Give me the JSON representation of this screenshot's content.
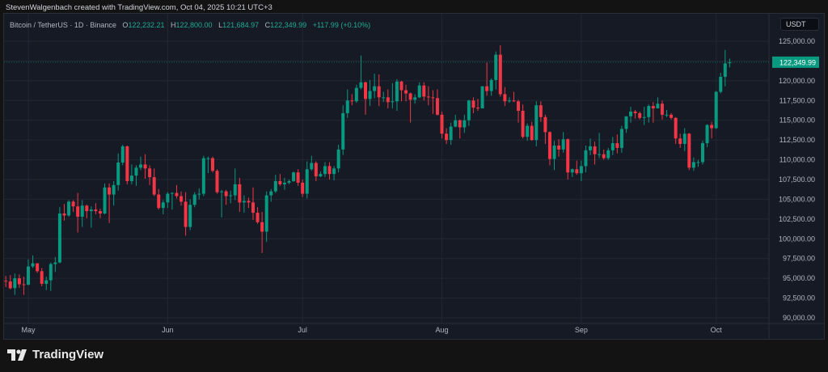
{
  "header": {
    "credit": "StevenWalgenbach created with TradingView.com, Oct 04, 2025 10:21 UTC+3"
  },
  "legend": {
    "symbol": "Bitcoin / TetherUS · 1D · Binance",
    "o_label": "O",
    "o": "122,232.21",
    "h_label": "H",
    "h": "122,800.00",
    "l_label": "L",
    "l": "121,684.97",
    "c_label": "C",
    "c": "122,349.99",
    "change": "+117.99 (+0.10%)"
  },
  "currency": "USDT",
  "footer": {
    "logo_text": "TradingView"
  },
  "colors": {
    "up": "#089981",
    "down": "#f23645",
    "last_price_bg": "#089981",
    "background": "#161a25"
  },
  "chart_data": {
    "type": "candlestick",
    "title": "Bitcoin / TetherUS · 1D · Binance",
    "ylim": [
      90000,
      125000
    ],
    "y_ticks": [
      "90,000.00",
      "92,500.00",
      "95,000.00",
      "97,500.00",
      "100,000.00",
      "102,500.00",
      "105,000.00",
      "107,500.00",
      "110,000.00",
      "112,500.00",
      "115,000.00",
      "117,500.00",
      "120,000.00",
      "122,500.00",
      "125,000.00"
    ],
    "x_ticks": [
      {
        "label": "May",
        "date": "05-01"
      },
      {
        "label": "Jun",
        "date": "06-01"
      },
      {
        "label": "Jul",
        "date": "07-01"
      },
      {
        "label": "Aug",
        "date": "08-01"
      },
      {
        "label": "Sep",
        "date": "09-01"
      },
      {
        "label": "Oct",
        "date": "10-01"
      }
    ],
    "last_price": "122,349.99",
    "grid": true,
    "candles_columns": [
      "date",
      "open",
      "high",
      "low",
      "close"
    ],
    "candles": [
      [
        "04-26",
        94700,
        95300,
        93900,
        94600
      ],
      [
        "04-27",
        94600,
        95400,
        93600,
        93750
      ],
      [
        "04-28",
        93750,
        95600,
        92900,
        95000
      ],
      [
        "04-29",
        95000,
        95500,
        93800,
        94250
      ],
      [
        "04-30",
        94250,
        95200,
        92900,
        94200
      ],
      [
        "05-01",
        94200,
        97400,
        94100,
        96500
      ],
      [
        "05-02",
        96500,
        97900,
        96300,
        96900
      ],
      [
        "05-03",
        96900,
        96900,
        95700,
        95900
      ],
      [
        "05-04",
        95900,
        96300,
        94000,
        94300
      ],
      [
        "05-05",
        94300,
        95200,
        93500,
        94750
      ],
      [
        "05-06",
        94750,
        97000,
        93400,
        96800
      ],
      [
        "05-07",
        96800,
        97700,
        95800,
        97000
      ],
      [
        "05-08",
        97000,
        104000,
        96900,
        103200
      ],
      [
        "05-09",
        103200,
        104400,
        102300,
        102950
      ],
      [
        "05-10",
        102950,
        104900,
        102800,
        104700
      ],
      [
        "05-11",
        104700,
        104900,
        103400,
        104100
      ],
      [
        "05-12",
        104100,
        105800,
        100800,
        102800
      ],
      [
        "05-13",
        102800,
        104900,
        101500,
        104200
      ],
      [
        "05-14",
        104200,
        104300,
        102600,
        103500
      ],
      [
        "05-15",
        103500,
        104100,
        101400,
        103700
      ],
      [
        "05-16",
        103700,
        104500,
        103100,
        103500
      ],
      [
        "05-17",
        103500,
        103800,
        102600,
        103200
      ],
      [
        "05-18",
        103200,
        107000,
        103100,
        106500
      ],
      [
        "05-19",
        106500,
        107000,
        102000,
        105600
      ],
      [
        "05-20",
        105600,
        107300,
        104200,
        106800
      ],
      [
        "05-21",
        106800,
        110800,
        106100,
        109650
      ],
      [
        "05-22",
        109650,
        111900,
        109300,
        111700
      ],
      [
        "05-23",
        111700,
        111800,
        106900,
        107300
      ],
      [
        "05-24",
        107300,
        109400,
        106900,
        108000
      ],
      [
        "05-25",
        108000,
        109300,
        106700,
        109000
      ],
      [
        "05-26",
        109000,
        110400,
        108700,
        109400
      ],
      [
        "05-27",
        109400,
        110700,
        107600,
        108900
      ],
      [
        "05-28",
        108900,
        109300,
        106800,
        107800
      ],
      [
        "05-29",
        107800,
        108900,
        105400,
        105600
      ],
      [
        "05-30",
        105600,
        106300,
        103700,
        103900
      ],
      [
        "05-31",
        103900,
        104900,
        103100,
        104600
      ],
      [
        "06-01",
        104600,
        105900,
        103900,
        105700
      ],
      [
        "06-02",
        105700,
        105900,
        103700,
        105800
      ],
      [
        "06-03",
        105800,
        106800,
        105100,
        105400
      ],
      [
        "06-04",
        105400,
        106000,
        104200,
        104700
      ],
      [
        "06-05",
        104700,
        105900,
        100400,
        101500
      ],
      [
        "06-06",
        101500,
        105000,
        101100,
        104300
      ],
      [
        "06-07",
        104300,
        105900,
        104000,
        105600
      ],
      [
        "06-08",
        105600,
        106400,
        105000,
        105700
      ],
      [
        "06-09",
        105700,
        110500,
        105400,
        110200
      ],
      [
        "06-10",
        110200,
        110400,
        108300,
        110200
      ],
      [
        "06-11",
        110200,
        110400,
        108400,
        108600
      ],
      [
        "06-12",
        108600,
        108800,
        105700,
        105900
      ],
      [
        "06-13",
        105900,
        106200,
        102700,
        106000
      ],
      [
        "06-14",
        106000,
        106200,
        104300,
        105400
      ],
      [
        "06-15",
        105400,
        106100,
        104500,
        105500
      ],
      [
        "06-16",
        105500,
        108900,
        104900,
        106900
      ],
      [
        "06-17",
        106900,
        107700,
        103400,
        104600
      ],
      [
        "06-18",
        104600,
        105500,
        103300,
        104800
      ],
      [
        "06-19",
        104800,
        105200,
        103900,
        104600
      ],
      [
        "06-20",
        104600,
        106500,
        102400,
        103300
      ],
      [
        "06-21",
        103300,
        104000,
        101900,
        102100
      ],
      [
        "06-22",
        102100,
        103400,
        98200,
        100900
      ],
      [
        "06-23",
        100900,
        106000,
        99600,
        105500
      ],
      [
        "06-24",
        105500,
        106300,
        104700,
        106000
      ],
      [
        "06-25",
        106000,
        108100,
        105800,
        107300
      ],
      [
        "06-26",
        107300,
        108200,
        106700,
        106900
      ],
      [
        "06-27",
        106900,
        107700,
        106200,
        107100
      ],
      [
        "06-28",
        107100,
        107500,
        106900,
        107300
      ],
      [
        "06-29",
        107300,
        108500,
        107200,
        108400
      ],
      [
        "06-30",
        108400,
        108800,
        106700,
        107100
      ],
      [
        "07-01",
        107100,
        107500,
        105300,
        105700
      ],
      [
        "07-02",
        105700,
        109800,
        105100,
        108800
      ],
      [
        "07-03",
        108800,
        110500,
        108600,
        109600
      ],
      [
        "07-04",
        109600,
        109800,
        107300,
        107900
      ],
      [
        "07-05",
        107900,
        108500,
        107800,
        108200
      ],
      [
        "07-06",
        108200,
        109700,
        107800,
        109200
      ],
      [
        "07-07",
        109200,
        109700,
        107500,
        108200
      ],
      [
        "07-08",
        108200,
        109200,
        107400,
        108900
      ],
      [
        "07-09",
        108900,
        111900,
        108400,
        111300
      ],
      [
        "07-10",
        111300,
        116900,
        110600,
        115900
      ],
      [
        "07-11",
        115900,
        118900,
        115300,
        117500
      ],
      [
        "07-12",
        117500,
        118300,
        116900,
        117400
      ],
      [
        "07-13",
        117400,
        119500,
        117200,
        119100
      ],
      [
        "07-14",
        119100,
        123200,
        118900,
        119800
      ],
      [
        "07-15",
        119800,
        119900,
        115700,
        117700
      ],
      [
        "07-16",
        117700,
        120100,
        116800,
        118700
      ],
      [
        "07-17",
        118700,
        120900,
        117800,
        119300
      ],
      [
        "07-18",
        119300,
        120800,
        116800,
        117900
      ],
      [
        "07-19",
        117900,
        118600,
        117300,
        117900
      ],
      [
        "07-20",
        117900,
        118900,
        116500,
        117300
      ],
      [
        "07-21",
        117300,
        119700,
        116500,
        117400
      ],
      [
        "07-22",
        117400,
        120200,
        116200,
        119900
      ],
      [
        "07-23",
        119900,
        120000,
        117400,
        118800
      ],
      [
        "07-24",
        118800,
        119500,
        117400,
        118400
      ],
      [
        "07-25",
        118400,
        118500,
        114700,
        117600
      ],
      [
        "07-26",
        117600,
        118300,
        117100,
        117900
      ],
      [
        "07-27",
        117900,
        119800,
        117800,
        119400
      ],
      [
        "07-28",
        119400,
        119800,
        117500,
        118000
      ],
      [
        "07-29",
        118000,
        119300,
        116900,
        117900
      ],
      [
        "07-30",
        117900,
        118800,
        115800,
        117800
      ],
      [
        "07-31",
        117800,
        118900,
        115600,
        115700
      ],
      [
        "08-01",
        115700,
        116100,
        112700,
        113300
      ],
      [
        "08-02",
        113300,
        114000,
        112000,
        112500
      ],
      [
        "08-03",
        112500,
        114700,
        111900,
        114200
      ],
      [
        "08-04",
        114200,
        115700,
        114100,
        115000
      ],
      [
        "08-05",
        115000,
        115100,
        112700,
        114100
      ],
      [
        "08-06",
        114100,
        115700,
        113400,
        115000
      ],
      [
        "08-07",
        115000,
        117600,
        114300,
        117500
      ],
      [
        "08-08",
        117500,
        117900,
        115900,
        116600
      ],
      [
        "08-09",
        116600,
        117700,
        116200,
        116500
      ],
      [
        "08-10",
        116500,
        119300,
        116500,
        119300
      ],
      [
        "08-11",
        119300,
        122300,
        118100,
        118700
      ],
      [
        "08-12",
        118700,
        120300,
        118100,
        120100
      ],
      [
        "08-13",
        120100,
        123700,
        118900,
        123300
      ],
      [
        "08-14",
        123300,
        124500,
        118000,
        118300
      ],
      [
        "08-15",
        118300,
        119200,
        116800,
        117400
      ],
      [
        "08-16",
        117400,
        117900,
        117200,
        117500
      ],
      [
        "08-17",
        117500,
        118600,
        117300,
        117400
      ],
      [
        "08-18",
        117400,
        117600,
        114700,
        116200
      ],
      [
        "08-19",
        116200,
        117000,
        112700,
        112900
      ],
      [
        "08-20",
        112900,
        114600,
        112400,
        114300
      ],
      [
        "08-21",
        114300,
        114800,
        112400,
        112500
      ],
      [
        "08-22",
        112500,
        117400,
        111700,
        116900
      ],
      [
        "08-23",
        116900,
        117400,
        114800,
        115400
      ],
      [
        "08-24",
        115400,
        115700,
        112000,
        113500
      ],
      [
        "08-25",
        113500,
        113600,
        109300,
        110100
      ],
      [
        "08-26",
        110100,
        112400,
        108700,
        111800
      ],
      [
        "08-27",
        111800,
        112600,
        110400,
        111300
      ],
      [
        "08-28",
        111300,
        113500,
        110900,
        112600
      ],
      [
        "08-29",
        112600,
        112700,
        107500,
        108400
      ],
      [
        "08-30",
        108400,
        108900,
        107800,
        108800
      ],
      [
        "08-31",
        108800,
        109900,
        108100,
        108300
      ],
      [
        "09-01",
        108300,
        109900,
        107300,
        109200
      ],
      [
        "09-02",
        109200,
        111800,
        108400,
        111200
      ],
      [
        "09-03",
        111200,
        112700,
        110600,
        111700
      ],
      [
        "09-04",
        111700,
        112300,
        109400,
        110700
      ],
      [
        "09-05",
        110700,
        113400,
        110200,
        110700
      ],
      [
        "09-06",
        110700,
        111300,
        110000,
        110200
      ],
      [
        "09-07",
        110200,
        111500,
        110000,
        111200
      ],
      [
        "09-08",
        111200,
        112900,
        110600,
        112100
      ],
      [
        "09-09",
        112100,
        113200,
        110800,
        111500
      ],
      [
        "09-10",
        111500,
        114300,
        110900,
        113900
      ],
      [
        "09-11",
        113900,
        115500,
        113400,
        115500
      ],
      [
        "09-12",
        115500,
        116700,
        114700,
        116100
      ],
      [
        "09-13",
        116100,
        116300,
        115200,
        115900
      ],
      [
        "09-14",
        115900,
        116100,
        115100,
        115300
      ],
      [
        "09-15",
        115300,
        116700,
        114400,
        115400
      ],
      [
        "09-16",
        115400,
        117000,
        114700,
        116800
      ],
      [
        "09-17",
        116800,
        117300,
        114700,
        116500
      ],
      [
        "09-18",
        116500,
        117900,
        116500,
        117100
      ],
      [
        "09-19",
        117100,
        117500,
        115100,
        115700
      ],
      [
        "09-20",
        115700,
        116300,
        115400,
        115700
      ],
      [
        "09-21",
        115700,
        115900,
        115100,
        115300
      ],
      [
        "09-22",
        115300,
        115400,
        112000,
        112700
      ],
      [
        "09-23",
        112700,
        113300,
        111500,
        112000
      ],
      [
        "09-24",
        112000,
        114000,
        111100,
        113300
      ],
      [
        "09-25",
        113300,
        113400,
        108700,
        109000
      ],
      [
        "09-26",
        109000,
        110300,
        108600,
        109700
      ],
      [
        "09-27",
        109700,
        110000,
        109100,
        109700
      ],
      [
        "09-28",
        109700,
        112400,
        109400,
        112100
      ],
      [
        "09-29",
        112100,
        114500,
        111600,
        114400
      ],
      [
        "09-30",
        114400,
        114800,
        112700,
        114000
      ],
      [
        "10-01",
        114000,
        118700,
        113900,
        118600
      ],
      [
        "10-02",
        118600,
        121000,
        118400,
        120500
      ],
      [
        "10-03",
        120500,
        123900,
        119300,
        122200
      ],
      [
        "10-04",
        122232.21,
        122800,
        121684.97,
        122349.99
      ]
    ]
  }
}
